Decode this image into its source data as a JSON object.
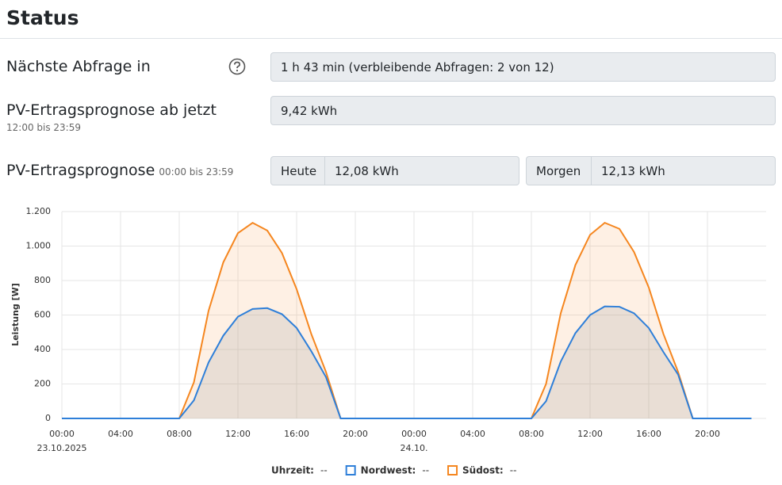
{
  "header": {
    "title": "Status"
  },
  "form": {
    "next_query": {
      "label": "Nächste Abfrage in",
      "value": "1 h 43 min (verbleibende Abfragen: 2 von 12)"
    },
    "forecast_now": {
      "label": "PV-Ertragsprognose ab jetzt",
      "sublabel": "12:00 bis 23:59",
      "value": "9,42 kWh"
    },
    "forecast": {
      "label": "PV-Ertragsprognose",
      "sublabel": "00:00 bis 23:59",
      "today": {
        "label": "Heute",
        "value": "12,08 kWh"
      },
      "tomorrow": {
        "label": "Morgen",
        "value": "12,13 kWh"
      }
    }
  },
  "chart_data": {
    "type": "line",
    "ylabel": "Leistung [W]",
    "x": [
      0,
      1,
      2,
      3,
      4,
      5,
      6,
      7,
      8,
      9,
      10,
      11,
      12,
      13,
      14,
      15,
      16,
      17,
      18,
      19,
      20,
      21,
      22,
      23,
      24,
      25,
      26,
      27,
      28,
      29,
      30,
      31,
      32,
      33,
      34,
      35,
      36,
      37,
      38,
      39,
      40,
      41,
      42,
      43,
      44,
      45,
      46,
      47
    ],
    "xlim": [
      0,
      48
    ],
    "xticks": [
      {
        "value": 0,
        "label": "00:00"
      },
      {
        "value": 4,
        "label": "04:00"
      },
      {
        "value": 8,
        "label": "08:00"
      },
      {
        "value": 12,
        "label": "12:00"
      },
      {
        "value": 16,
        "label": "16:00"
      },
      {
        "value": 20,
        "label": "20:00"
      },
      {
        "value": 24,
        "label": "00:00"
      },
      {
        "value": 28,
        "label": "04:00"
      },
      {
        "value": 32,
        "label": "08:00"
      },
      {
        "value": 36,
        "label": "12:00"
      },
      {
        "value": 40,
        "label": "16:00"
      },
      {
        "value": 44,
        "label": "20:00"
      }
    ],
    "xdates": [
      {
        "value": 0,
        "label": "23.10.2025"
      },
      {
        "value": 24,
        "label": "24.10."
      }
    ],
    "ylim": [
      0,
      1200
    ],
    "yticks": [
      0,
      200,
      400,
      600,
      800,
      {
        "value": 1000,
        "label": "1.000"
      },
      {
        "value": 1200,
        "label": "1.200"
      }
    ],
    "grid": true,
    "x_readout": {
      "label": "Uhrzeit:",
      "value": "--"
    },
    "series": [
      {
        "name": "Südost:",
        "readout": "--",
        "color": "#f5861f",
        "fill": "rgba(245,134,31,0.12)",
        "values": [
          0,
          0,
          0,
          0,
          0,
          0,
          0,
          0,
          0,
          210,
          625,
          905,
          1075,
          1135,
          1090,
          960,
          750,
          490,
          270,
          0,
          0,
          0,
          0,
          0,
          0,
          0,
          0,
          0,
          0,
          0,
          0,
          0,
          0,
          200,
          610,
          890,
          1065,
          1135,
          1100,
          965,
          760,
          490,
          270,
          0,
          0,
          0,
          0,
          0
        ]
      },
      {
        "name": "Nordwest:",
        "readout": "--",
        "color": "#2e7fd9",
        "fill": "rgba(160,160,160,0.22)",
        "values": [
          0,
          0,
          0,
          0,
          0,
          0,
          0,
          0,
          0,
          105,
          325,
          480,
          590,
          635,
          640,
          605,
          525,
          390,
          240,
          0,
          0,
          0,
          0,
          0,
          0,
          0,
          0,
          0,
          0,
          0,
          0,
          0,
          0,
          100,
          330,
          495,
          600,
          650,
          648,
          610,
          525,
          385,
          255,
          0,
          0,
          0,
          0,
          0
        ]
      }
    ],
    "legend_order": [
      1,
      0
    ]
  }
}
